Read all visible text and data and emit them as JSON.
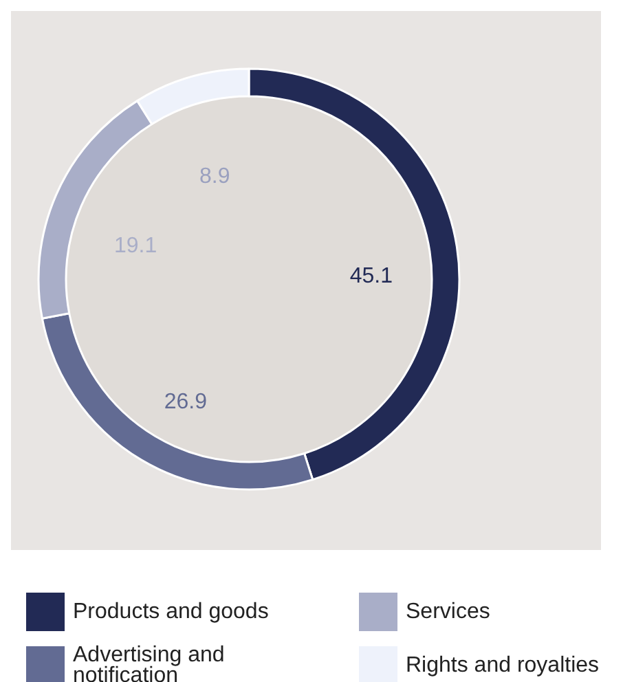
{
  "chart_data": {
    "type": "donut",
    "categories": [
      "Products and goods",
      "Advertising and notification",
      "Services",
      "Rights and royalties"
    ],
    "values": [
      45.1,
      26.9,
      19.1,
      8.9
    ],
    "colors": [
      "#222a55",
      "#626b93",
      "#a9aec8",
      "#eef2fb"
    ],
    "data_labels": true,
    "legend": "bottom"
  }
}
